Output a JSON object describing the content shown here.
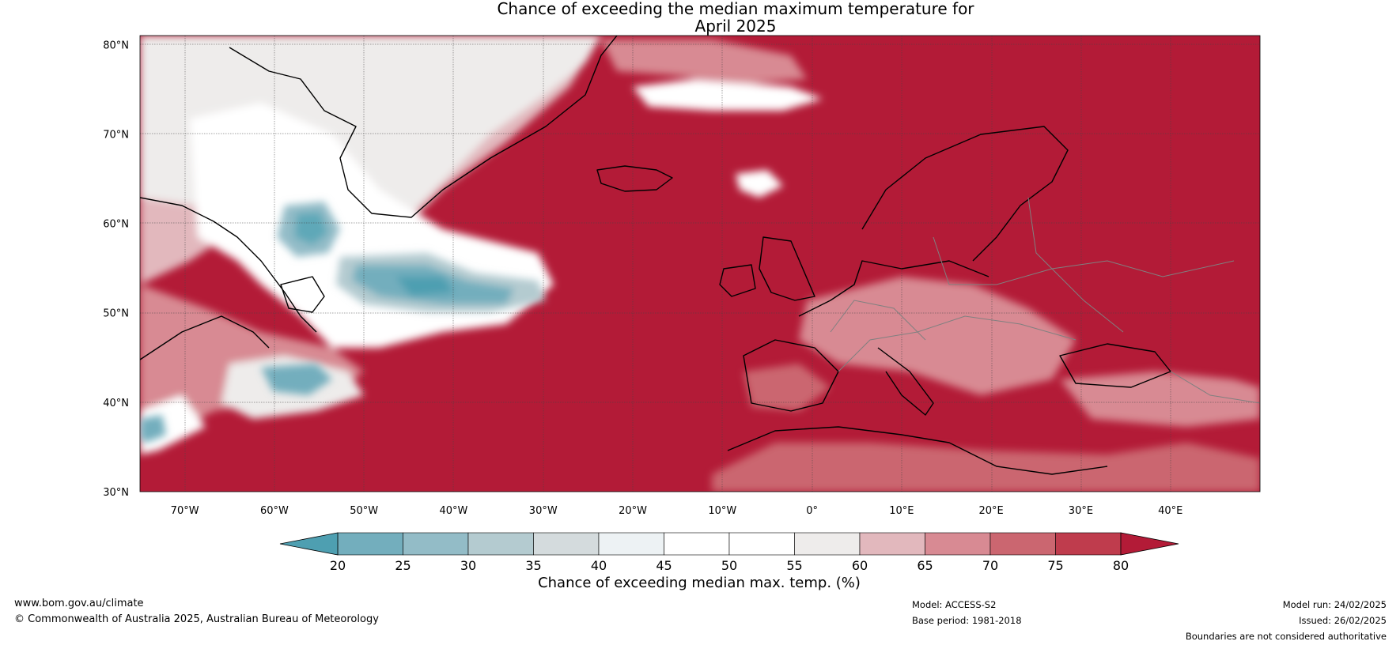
{
  "title": {
    "line1": "Chance of exceeding the median maximum temperature for",
    "line2": "April 2025"
  },
  "map": {
    "lon_range": [
      -75,
      50
    ],
    "lat_range": [
      30,
      81
    ],
    "lat_ticks": [
      "80°N",
      "70°N",
      "60°N",
      "50°N",
      "40°N",
      "30°N"
    ],
    "lat_values": [
      80,
      70,
      60,
      50,
      40,
      30
    ],
    "lon_ticks": [
      "70°W",
      "60°W",
      "50°W",
      "40°W",
      "30°W",
      "20°W",
      "10°W",
      "0°",
      "10°E",
      "20°E",
      "30°E",
      "40°E"
    ],
    "lon_values": [
      -70,
      -60,
      -50,
      -40,
      -30,
      -20,
      -10,
      0,
      10,
      20,
      30,
      40
    ]
  },
  "colorbar": {
    "tick_labels": [
      "20",
      "25",
      "30",
      "35",
      "40",
      "45",
      "50",
      "55",
      "60",
      "65",
      "70",
      "75",
      "80"
    ],
    "colors": [
      "#5ea8b8",
      "#73aebd",
      "#93bcc7",
      "#b4cbd0",
      "#d4dbdd",
      "#edf2f4",
      "#ffffff",
      "#ffffff",
      "#eeeceb",
      "#e2b8bd",
      "#d88a93",
      "#cb6670",
      "#bf3c4d"
    ],
    "low_extension_color": "#4e9fb1",
    "high_extension_color": "#b31b37",
    "label": "Chance of exceeding median max. temp. (%)"
  },
  "footer": {
    "url": "www.bom.gov.au/climate",
    "copyright": "© Commonwealth of Australia 2025, Australian Bureau of Meteorology",
    "model": "Model: ACCESS-S2",
    "base_period": "Base period: 1981-2018",
    "model_run": "Model run: 24/02/2025",
    "issued": "Issued: 26/02/2025",
    "disclaimer": "Boundaries are not considered authoritative"
  },
  "palette": {
    "ocean_warm": "#b31b37",
    "blue_anomaly": "#4e9fb1",
    "coast": "#000000",
    "borders": "#808080"
  }
}
